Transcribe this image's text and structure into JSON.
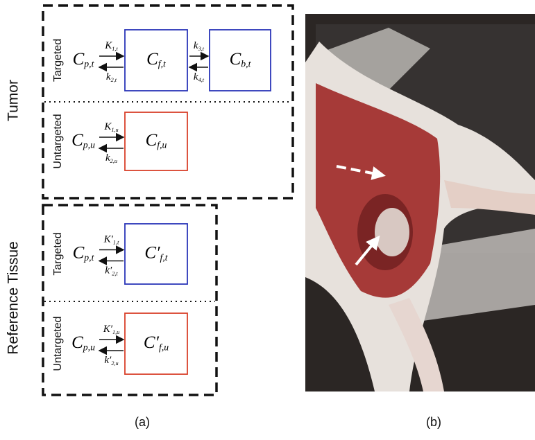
{
  "groups": [
    {
      "label": "Tumor",
      "panels": [
        {
          "label": "Targeted",
          "color": "#2a35b8",
          "input": {
            "main": "C",
            "sub": "p,t"
          },
          "compartments": [
            {
              "main": "C",
              "sub": "f,t"
            },
            {
              "main": "C",
              "sub": "b,t"
            }
          ],
          "rates": [
            {
              "forward": {
                "main": "K",
                "sub": "1,t"
              },
              "backward": {
                "main": "k",
                "sub": "2,t"
              }
            },
            {
              "forward": {
                "main": "k",
                "sub": "3,t"
              },
              "backward": {
                "main": "k",
                "sub": "4,t"
              }
            }
          ]
        },
        {
          "label": "Untargeted",
          "color": "#d9402a",
          "input": {
            "main": "C",
            "sub": "p,u"
          },
          "compartments": [
            {
              "main": "C",
              "sub": "f,u"
            }
          ],
          "rates": [
            {
              "forward": {
                "main": "K",
                "sub": "1,u"
              },
              "backward": {
                "main": "k",
                "sub": "2,u"
              }
            }
          ]
        }
      ]
    },
    {
      "label": "Reference Tissue",
      "panels": [
        {
          "label": "Targeted",
          "color": "#2a35b8",
          "input": {
            "main": "C",
            "sub": "p,t"
          },
          "compartments": [
            {
              "main": "C′",
              "sub": "f,t"
            }
          ],
          "rates": [
            {
              "forward": {
                "main": "K′",
                "sub": "1,t"
              },
              "backward": {
                "main": "k′",
                "sub": "2,t"
              }
            }
          ]
        },
        {
          "label": "Untargeted",
          "color": "#d9402a",
          "input": {
            "main": "C",
            "sub": "p,u"
          },
          "compartments": [
            {
              "main": "C′",
              "sub": "f,u"
            }
          ],
          "rates": [
            {
              "forward": {
                "main": "K′",
                "sub": "1,u"
              },
              "backward": {
                "main": "k′",
                "sub": "2,u"
              }
            }
          ]
        }
      ]
    }
  ],
  "captions": [
    "(a)",
    "(b)"
  ]
}
